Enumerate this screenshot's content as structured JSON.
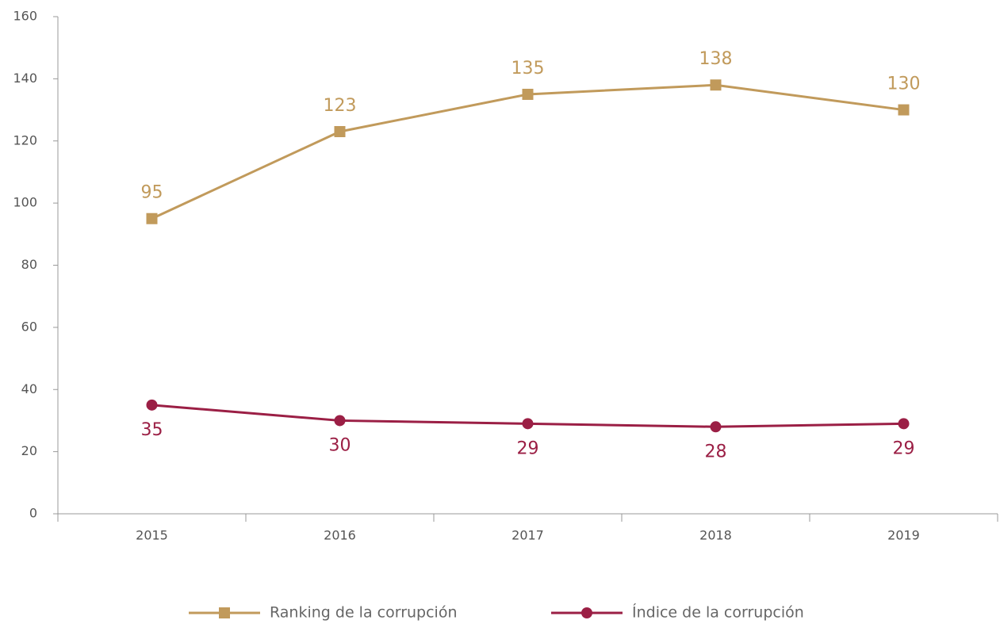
{
  "chart_data": {
    "type": "line",
    "categories": [
      "2015",
      "2016",
      "2017",
      "2018",
      "2019"
    ],
    "series": [
      {
        "name": "Ranking de la corrupción",
        "color": "#c19a5b",
        "marker": "square",
        "label_position": "above",
        "values": [
          95,
          123,
          135,
          138,
          130
        ]
      },
      {
        "name": "Índice de la corrupción",
        "color": "#9b1f45",
        "marker": "circle",
        "label_position": "below",
        "values": [
          35,
          30,
          29,
          28,
          29
        ]
      }
    ],
    "ylim": [
      0,
      160
    ],
    "yticks": [
      0,
      20,
      40,
      60,
      80,
      100,
      120,
      140,
      160
    ],
    "grid": false,
    "legend": "bottom"
  }
}
